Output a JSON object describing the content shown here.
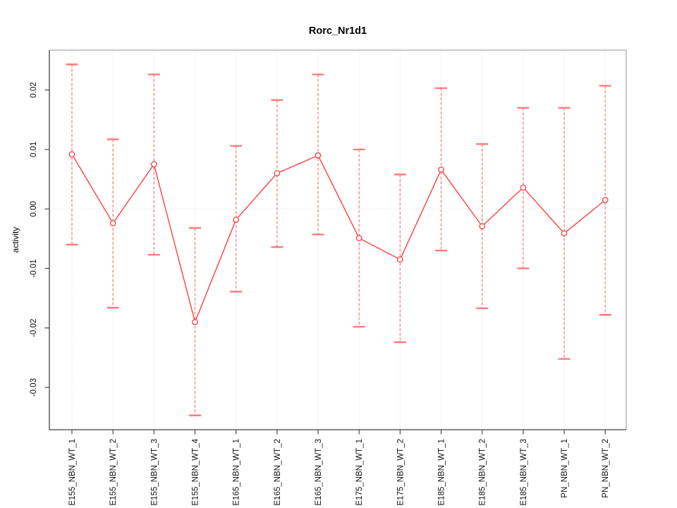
{
  "page": {
    "background": "#ffffff"
  },
  "chart_data": {
    "type": "line",
    "title": "Rorc_Nr1d1",
    "xlabel": "",
    "ylabel": "activity",
    "legend_position": "none",
    "categories": [
      "E155_NBN_WT_1",
      "E155_NBN_WT_2",
      "E155_NBN_WT_3",
      "E155_NBN_WT_4",
      "E165_NBN_WT_1",
      "E165_NBN_WT_2",
      "E165_NBN_WT_3",
      "E175_NBN_WT_1",
      "E175_NBN_WT_2",
      "E185_NBN_WT_1",
      "E185_NBN_WT_2",
      "E185_NBN_WT_3",
      "PN_NBN_WT_1",
      "PN_NBN_WT_2"
    ],
    "series": [
      {
        "name": "activity",
        "values": [
          0.0092,
          -0.0024,
          0.0075,
          -0.019,
          -0.0018,
          0.006,
          0.009,
          -0.0049,
          -0.0085,
          0.0066,
          -0.0029,
          0.0036,
          -0.0041,
          0.0015
        ]
      }
    ],
    "error_high": [
      0.0243,
      0.0117,
      0.0226,
      -0.0032,
      0.0106,
      0.0183,
      0.0226,
      0.01,
      0.0058,
      0.0203,
      0.0109,
      0.017,
      0.017,
      0.0207
    ],
    "error_low": [
      -0.006,
      -0.0166,
      -0.0077,
      -0.0347,
      -0.0139,
      -0.0064,
      -0.0043,
      -0.0198,
      -0.0224,
      -0.007,
      -0.0167,
      -0.01,
      -0.0252,
      -0.0178
    ],
    "ylim": [
      -0.0371,
      0.0267
    ],
    "yticks": [
      0.02,
      0.01,
      0.0,
      -0.01,
      -0.02,
      -0.03
    ],
    "ytick_labels": [
      "0.02",
      "0.01",
      "0.00",
      "-0.01",
      "-0.02",
      "-0.03"
    ],
    "grid": {
      "vertical_at_categories": true,
      "zero_line": true,
      "style": "dotted",
      "color": "#e2e2e2"
    },
    "marker": "open-circle",
    "colors": {
      "line": "#ff4040",
      "marker": "#ff4040",
      "errorbar": "#ff6e6e",
      "axis": "#4a4a4a",
      "box": "#a8a8a8",
      "text": "#111111"
    }
  }
}
